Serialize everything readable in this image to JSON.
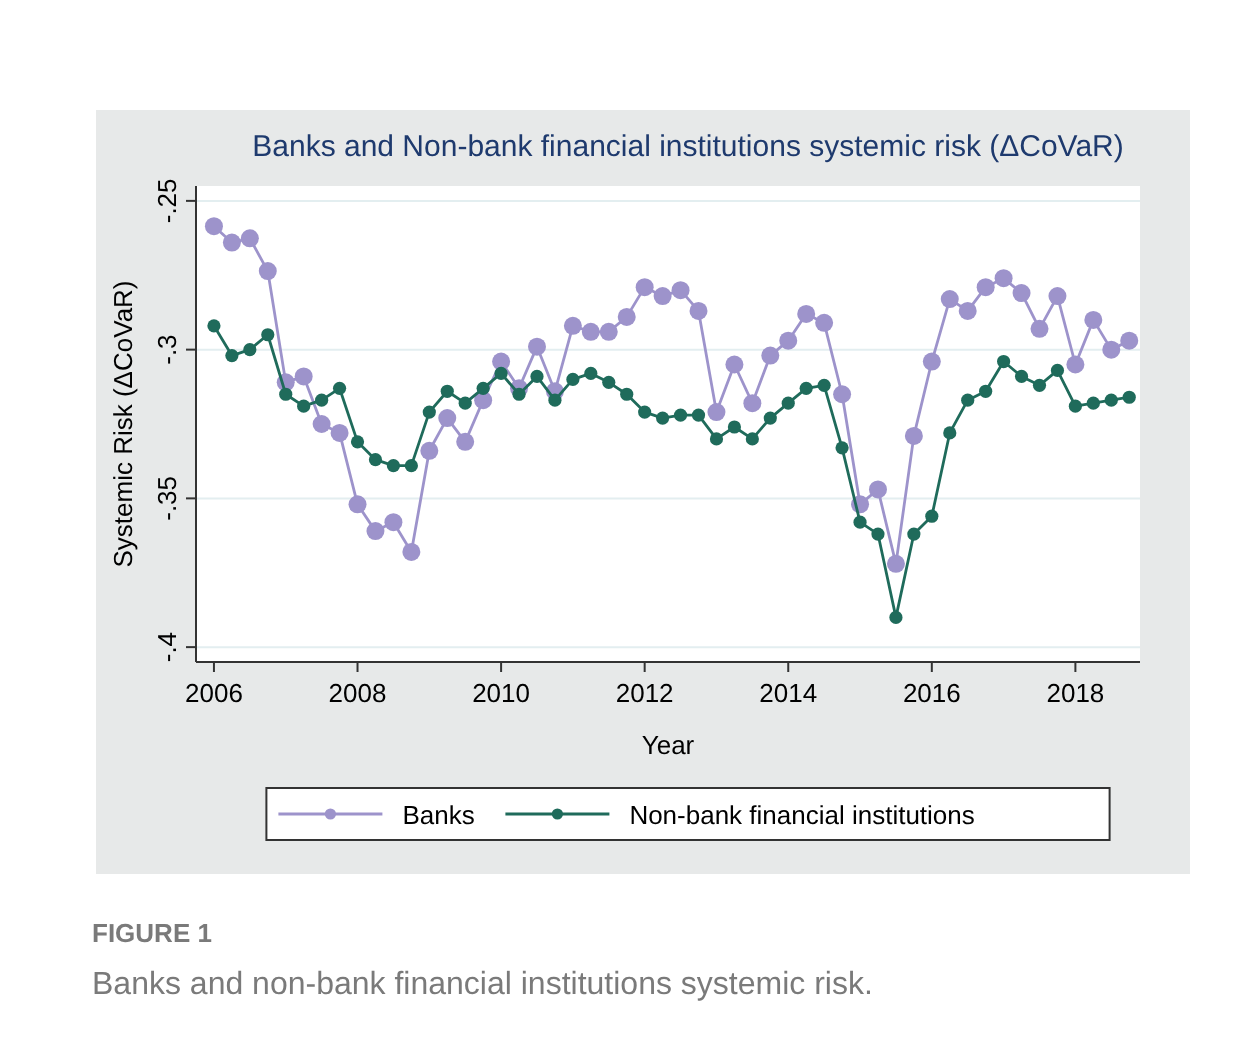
{
  "chart_data": {
    "type": "line",
    "title": "Banks and Non-bank financial institutions systemic risk (ΔCoVaR)",
    "xlabel": "Year",
    "ylabel": "Systemic Risk (ΔCoVaR)",
    "x": [
      2006,
      2006.25,
      2006.5,
      2006.75,
      2007,
      2007.25,
      2007.5,
      2007.75,
      2008,
      2008.25,
      2008.5,
      2008.75,
      2009,
      2009.25,
      2009.5,
      2009.75,
      2010,
      2010.25,
      2010.5,
      2010.75,
      2011,
      2011.25,
      2011.5,
      2011.75,
      2012,
      2012.25,
      2012.5,
      2012.75,
      2013,
      2013.25,
      2013.5,
      2013.75,
      2014,
      2014.25,
      2014.5,
      2014.75,
      2015,
      2015.25,
      2015.5,
      2015.75,
      2016,
      2016.25,
      2016.5,
      2016.75,
      2017,
      2017.25,
      2017.5,
      2017.75,
      2018,
      2018.25,
      2018.5,
      2018.75
    ],
    "series": [
      {
        "name": "Banks",
        "color": "#9d93cb",
        "values": [
          -0.2585,
          -0.264,
          -0.2626,
          -0.2736,
          -0.311,
          -0.309,
          -0.325,
          -0.328,
          -0.352,
          -0.361,
          -0.358,
          -0.368,
          -0.334,
          -0.323,
          -0.331,
          -0.317,
          -0.304,
          -0.313,
          -0.299,
          -0.314,
          -0.292,
          -0.294,
          -0.294,
          -0.289,
          -0.279,
          -0.282,
          -0.28,
          -0.287,
          -0.321,
          -0.305,
          -0.318,
          -0.302,
          -0.297,
          -0.288,
          -0.291,
          -0.315,
          -0.352,
          -0.347,
          -0.372,
          -0.329,
          -0.304,
          -0.283,
          -0.287,
          -0.279,
          -0.276,
          -0.281,
          -0.293,
          -0.282,
          -0.305,
          -0.29,
          -0.3,
          -0.297
        ]
      },
      {
        "name": "Non-bank financial institutions",
        "color": "#1f6b5b",
        "values": [
          -0.292,
          -0.302,
          -0.3,
          -0.295,
          -0.315,
          -0.319,
          -0.317,
          -0.313,
          -0.331,
          -0.337,
          -0.339,
          -0.339,
          -0.321,
          -0.314,
          -0.318,
          -0.313,
          -0.308,
          -0.315,
          -0.309,
          -0.317,
          -0.31,
          -0.308,
          -0.311,
          -0.315,
          -0.321,
          -0.323,
          -0.322,
          -0.322,
          -0.33,
          -0.326,
          -0.33,
          -0.323,
          -0.318,
          -0.313,
          -0.312,
          -0.333,
          -0.358,
          -0.362,
          -0.39,
          -0.362,
          -0.356,
          -0.328,
          -0.317,
          -0.314,
          -0.304,
          -0.309,
          -0.312,
          -0.307,
          -0.319,
          -0.318,
          -0.317,
          -0.316
        ]
      }
    ],
    "xlim": [
      2005.75,
      2018.9
    ],
    "xticks": [
      2006,
      2008,
      2010,
      2012,
      2014,
      2016,
      2018
    ],
    "ylim": [
      -0.405,
      -0.245
    ],
    "yticks": [
      {
        "value": -0.4,
        "label": "-.4"
      },
      {
        "value": -0.35,
        "label": "-.35"
      },
      {
        "value": -0.3,
        "label": "-.3"
      },
      {
        "value": -0.25,
        "label": "-.25"
      }
    ],
    "grid": "y",
    "legend": "bottom",
    "marker": "circle",
    "line_style": "solid",
    "annotations": [
      "FIGURE 1",
      "Banks and non-bank financial institutions systemic risk."
    ]
  }
}
